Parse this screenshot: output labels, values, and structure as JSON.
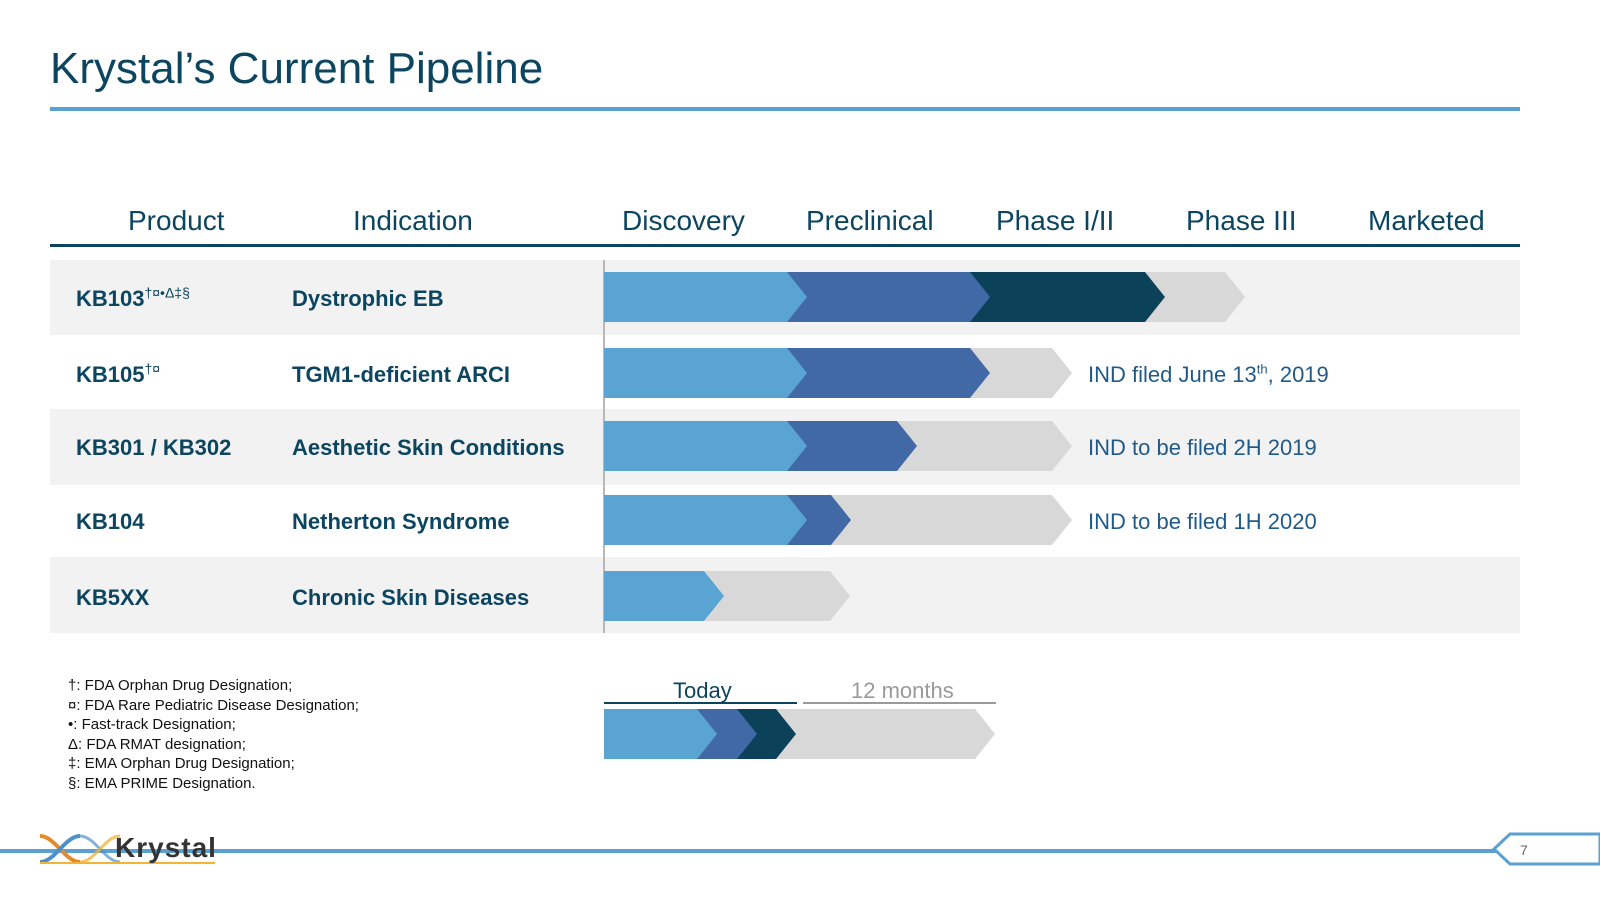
{
  "title": "Krystal’s Current Pipeline",
  "columns": [
    "Product",
    "Indication",
    "Discovery",
    "Preclinical",
    "Phase I/II",
    "Phase III",
    "Marketed"
  ],
  "rows": [
    {
      "product": "KB103",
      "marks": "†¤•Δ‡§",
      "indication": "Dystrophic EB",
      "note_pre": "",
      "note_sup": "",
      "note_post": ""
    },
    {
      "product": "KB105",
      "marks": "†¤",
      "indication": "TGM1-deficient ARCI",
      "note_pre": "IND filed June 13",
      "note_sup": "th",
      "note_post": ", 2019"
    },
    {
      "product": "KB301 / KB302",
      "marks": "",
      "indication": "Aesthetic Skin Conditions",
      "note_pre": "IND to be filed 2H 2019",
      "note_sup": "",
      "note_post": ""
    },
    {
      "product": "KB104",
      "marks": "",
      "indication": "Netherton Syndrome",
      "note_pre": "IND to be filed 1H 2020",
      "note_sup": "",
      "note_post": ""
    },
    {
      "product": "KB5XX",
      "marks": "",
      "indication": "Chronic Skin Diseases",
      "note_pre": "",
      "note_sup": "",
      "note_post": ""
    }
  ],
  "footnotes": [
    "†: FDA Orphan Drug Designation;",
    "¤: FDA Rare Pediatric Disease Designation;",
    "•: Fast-track Designation;",
    "Δ: FDA RMAT designation;",
    "‡: EMA Orphan Drug Designation;",
    "§: EMA PRIME Designation."
  ],
  "legend": {
    "today": "Today",
    "future": "12 months"
  },
  "footer": {
    "logo_text": "Krystal",
    "page_number": "7"
  },
  "colors": {
    "discovery": "#5aa4d3",
    "preclinical": "#4169a6",
    "phase12": "#0b4259",
    "planned": "#d8d8d8",
    "row_shade": "#f2f2f2",
    "title": "#0c4560"
  }
}
